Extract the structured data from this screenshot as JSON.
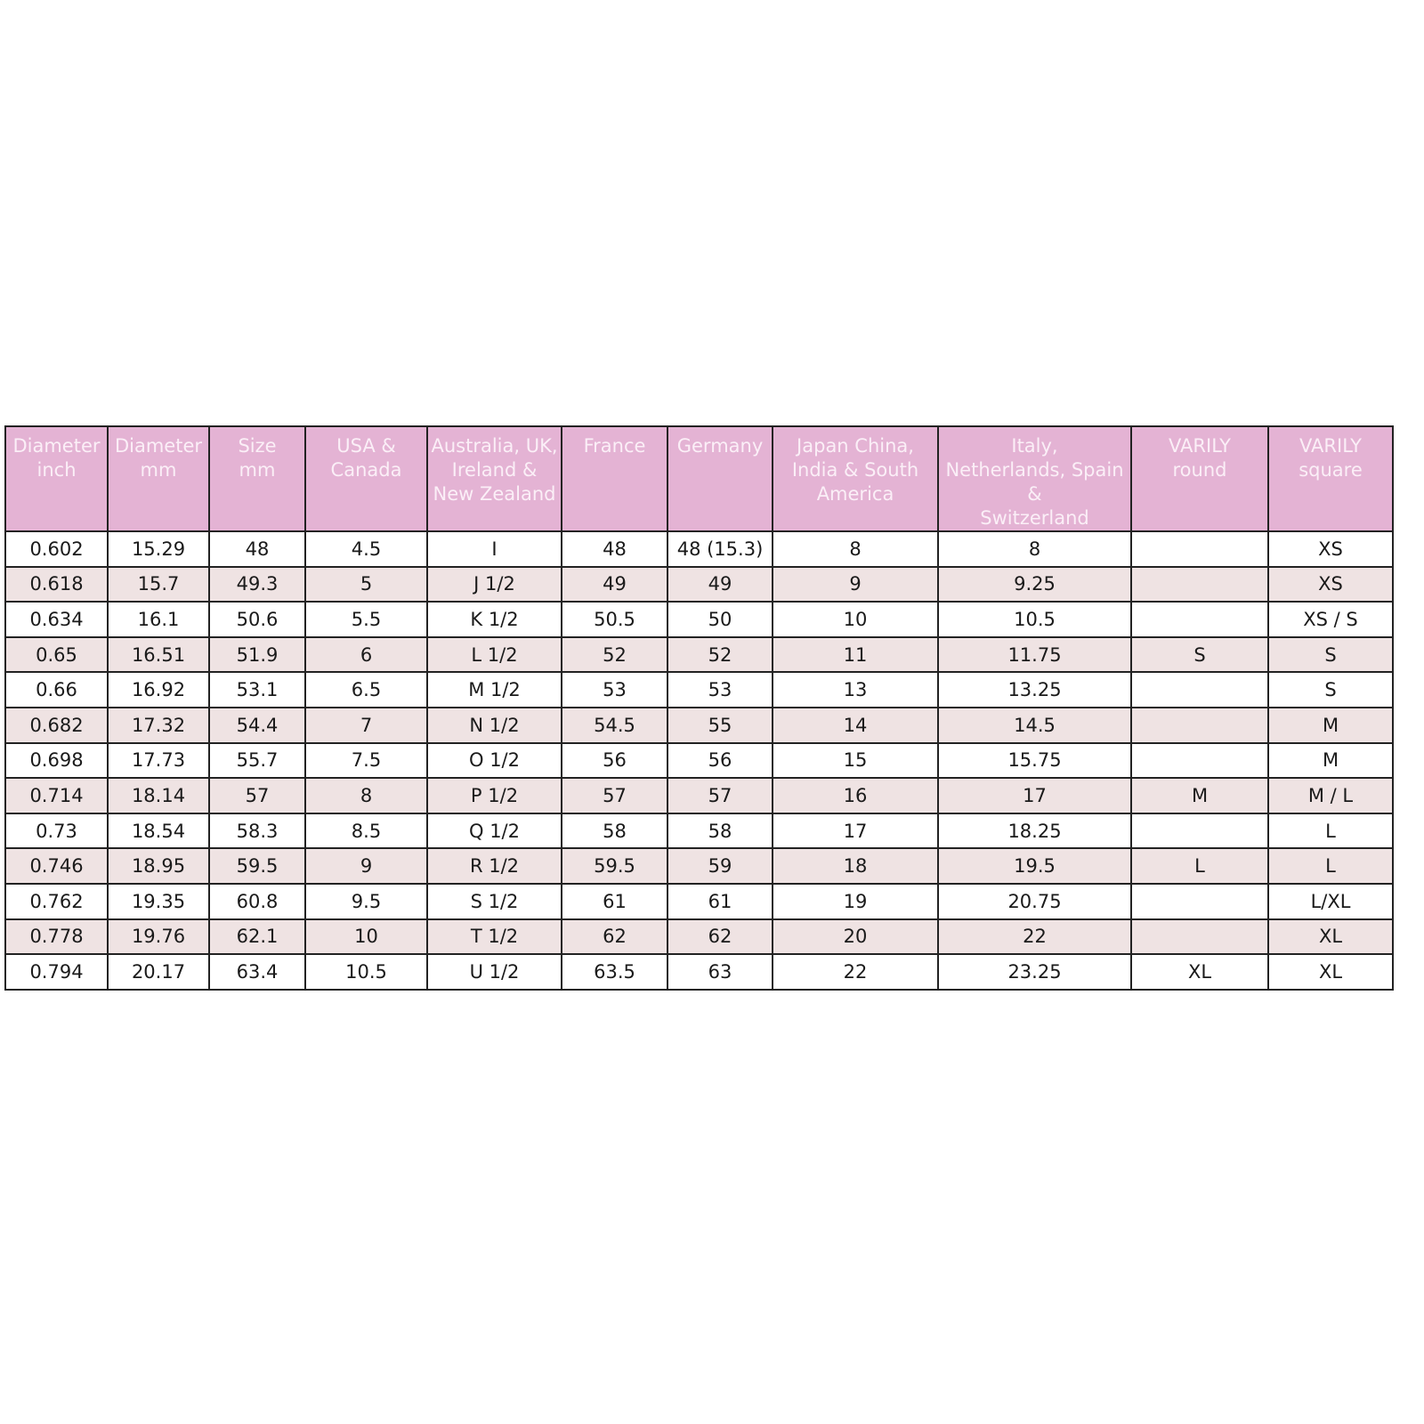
{
  "colors": {
    "header_bg": "#e4b3d4",
    "header_text": "#fbeff7",
    "alt_row_bg": "#efe3e3"
  },
  "table": {
    "headers": [
      [
        "Diameter",
        "inch"
      ],
      [
        "Diameter",
        "mm"
      ],
      [
        "Size",
        "mm"
      ],
      [
        "USA &",
        "Canada"
      ],
      [
        "Australia, UK,",
        "Ireland &",
        "New Zealand"
      ],
      [
        "France"
      ],
      [
        "Germany"
      ],
      [
        "Japan China,",
        "India & South",
        "America"
      ],
      [
        "Italy,",
        "Netherlands, Spain",
        "&",
        "Switzerland"
      ],
      [
        "VARILY",
        "round"
      ],
      [
        "VARILY",
        "square"
      ]
    ],
    "rows": [
      [
        "0.602",
        "15.29",
        "48",
        "4.5",
        "I",
        "48",
        "48 (15.3)",
        "8",
        "8",
        "",
        "XS"
      ],
      [
        "0.618",
        "15.7",
        "49.3",
        "5",
        "J 1/2",
        "49",
        "49",
        "9",
        "9.25",
        "",
        "XS"
      ],
      [
        "0.634",
        "16.1",
        "50.6",
        "5.5",
        "K 1/2",
        "50.5",
        "50",
        "10",
        "10.5",
        "",
        "XS / S"
      ],
      [
        "0.65",
        "16.51",
        "51.9",
        "6",
        "L 1/2",
        "52",
        "52",
        "11",
        "11.75",
        "S",
        "S"
      ],
      [
        "0.66",
        "16.92",
        "53.1",
        "6.5",
        "M 1/2",
        "53",
        "53",
        "13",
        "13.25",
        "",
        "S"
      ],
      [
        "0.682",
        "17.32",
        "54.4",
        "7",
        "N 1/2",
        "54.5",
        "55",
        "14",
        "14.5",
        "",
        "M"
      ],
      [
        "0.698",
        "17.73",
        "55.7",
        "7.5",
        "O 1/2",
        "56",
        "56",
        "15",
        "15.75",
        "",
        "M"
      ],
      [
        "0.714",
        "18.14",
        "57",
        "8",
        "P 1/2",
        "57",
        "57",
        "16",
        "17",
        "M",
        "M / L"
      ],
      [
        "0.73",
        "18.54",
        "58.3",
        "8.5",
        "Q 1/2",
        "58",
        "58",
        "17",
        "18.25",
        "",
        "L"
      ],
      [
        "0.746",
        "18.95",
        "59.5",
        "9",
        "R 1/2",
        "59.5",
        "59",
        "18",
        "19.5",
        "L",
        "L"
      ],
      [
        "0.762",
        "19.35",
        "60.8",
        "9.5",
        "S 1/2",
        "61",
        "61",
        "19",
        "20.75",
        "",
        "L/XL"
      ],
      [
        "0.778",
        "19.76",
        "62.1",
        "10",
        "T 1/2",
        "62",
        "62",
        "20",
        "22",
        "",
        "XL"
      ],
      [
        "0.794",
        "20.17",
        "63.4",
        "10.5",
        "U 1/2",
        "63.5",
        "63",
        "22",
        "23.25",
        "XL",
        "XL"
      ]
    ]
  }
}
